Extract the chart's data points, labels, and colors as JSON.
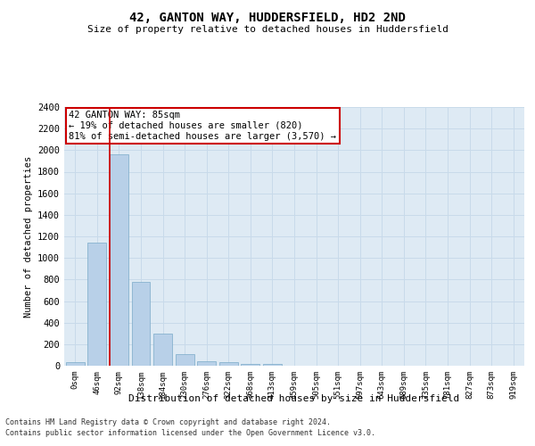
{
  "title_line1": "42, GANTON WAY, HUDDERSFIELD, HD2 2ND",
  "title_line2": "Size of property relative to detached houses in Huddersfield",
  "xlabel": "Distribution of detached houses by size in Huddersfield",
  "ylabel": "Number of detached properties",
  "bar_labels": [
    "0sqm",
    "46sqm",
    "92sqm",
    "138sqm",
    "184sqm",
    "230sqm",
    "276sqm",
    "322sqm",
    "368sqm",
    "413sqm",
    "459sqm",
    "505sqm",
    "551sqm",
    "597sqm",
    "643sqm",
    "689sqm",
    "735sqm",
    "781sqm",
    "827sqm",
    "873sqm",
    "919sqm"
  ],
  "bar_values": [
    35,
    1145,
    1960,
    775,
    300,
    105,
    45,
    35,
    20,
    15,
    0,
    0,
    0,
    0,
    0,
    0,
    0,
    0,
    0,
    0,
    0
  ],
  "bar_color": "#b8d0e8",
  "bar_edge_color": "#7aaac8",
  "grid_color": "#c8daea",
  "background_color": "#deeaf4",
  "vline_color": "#cc0000",
  "ylim": [
    0,
    2400
  ],
  "yticks": [
    0,
    200,
    400,
    600,
    800,
    1000,
    1200,
    1400,
    1600,
    1800,
    2000,
    2200,
    2400
  ],
  "annotation_text": "42 GANTON WAY: 85sqm\n← 19% of detached houses are smaller (820)\n81% of semi-detached houses are larger (3,570) →",
  "annotation_box_color": "#ffffff",
  "annotation_box_edge": "#cc0000",
  "footnote1": "Contains HM Land Registry data © Crown copyright and database right 2024.",
  "footnote2": "Contains public sector information licensed under the Open Government Licence v3.0."
}
